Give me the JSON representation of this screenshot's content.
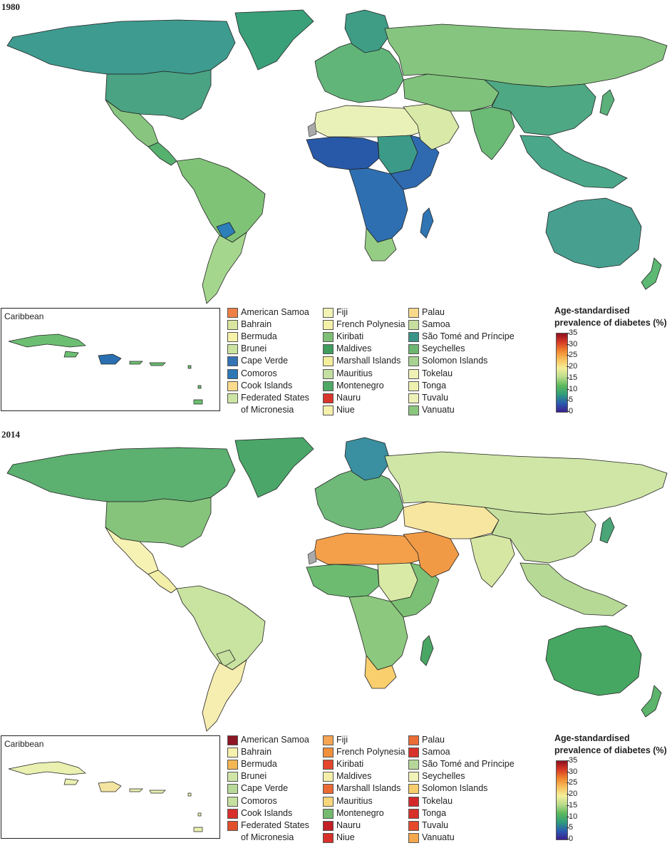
{
  "colors": {
    "ocean": "#ffffff",
    "border": "#222222",
    "no_data": "#a9a9a9",
    "scale_stops": [
      "#3b1f8e",
      "#2a5db0",
      "#2f9d7a",
      "#5cb85c",
      "#b9dc8c",
      "#f3ef9a",
      "#f8c15c",
      "#f0862e",
      "#d83a25",
      "#8e1020"
    ]
  },
  "panels": [
    {
      "year": "1980",
      "caribbean_title": "Caribbean",
      "scale": {
        "title_line1": "Age-standardised",
        "title_line2": "prevalence of diabetes (%)",
        "ticks": [
          "35",
          "30",
          "25",
          "20",
          "15",
          "10",
          "5",
          "0"
        ]
      },
      "regions": {
        "north_america": "#3e9b8f",
        "greenland": "#3aa07a",
        "usa": "#4aa383",
        "mexico": "#88c680",
        "central_america": "#56b06e",
        "south_america": "#7fc377",
        "southern_cone": "#a5d68e",
        "bolivia": "#2c7fb8",
        "europe": "#62b579",
        "scandinavia": "#3f9d86",
        "russia": "#86c57f",
        "north_africa": "#eaf1b8",
        "west_africa": "#2859a8",
        "east_africa": "#2f6ab1",
        "sudan": "#3b9a88",
        "southern_africa": "#2e6fb2",
        "south_africa": "#96cd85",
        "madagascar": "#2f75b4",
        "middle_east": "#d8e9a8",
        "central_asia": "#7fc27b",
        "india": "#6bba76",
        "china": "#4ea883",
        "se_asia": "#4aa78a",
        "australia": "#47a08f",
        "new_zealand": "#5cb872",
        "japan": "#5cb07a",
        "caribbean_islands": "#6cbf72",
        "hispaniola": "#2b6fb0"
      },
      "legend": [
        {
          "name": "American Samoa",
          "color": "#ee7f45"
        },
        {
          "name": "Bahrain",
          "color": "#d9e6a0"
        },
        {
          "name": "Bermuda",
          "color": "#f7f2a8"
        },
        {
          "name": "Brunei",
          "color": "#cbe3a0"
        },
        {
          "name": "Cape Verde",
          "color": "#3473b4"
        },
        {
          "name": "Comoros",
          "color": "#2f78b6"
        },
        {
          "name": "Cook Islands",
          "color": "#f8dc8c"
        },
        {
          "name": "Federated States",
          "name2": "of Micronesia",
          "color": "#cde5a4"
        },
        {
          "name": "Fiji",
          "color": "#f2f3b5"
        },
        {
          "name": "French Polynesia",
          "color": "#f5f0a8"
        },
        {
          "name": "Kiribati",
          "color": "#7fbe76"
        },
        {
          "name": "Maldives",
          "color": "#3f9c5c"
        },
        {
          "name": "Marshall Islands",
          "color": "#f4ed9c"
        },
        {
          "name": "Mauritius",
          "color": "#c3dfa1"
        },
        {
          "name": "Montenegro",
          "color": "#4fa865"
        },
        {
          "name": "Nauru",
          "color": "#d8352b"
        },
        {
          "name": "Niue",
          "color": "#f5f0ac"
        },
        {
          "name": "Palau",
          "color": "#f8d98a"
        },
        {
          "name": "Samoa",
          "color": "#c6dea0"
        },
        {
          "name": "São Tomé and Príncipe",
          "color": "#3a9488"
        },
        {
          "name": "Seychelles",
          "color": "#6db66f"
        },
        {
          "name": "Solomon Islands",
          "color": "#a7d292"
        },
        {
          "name": "Tokelau",
          "color": "#eff1b5"
        },
        {
          "name": "Tonga",
          "color": "#eef0b0"
        },
        {
          "name": "Tuvalu",
          "color": "#eff2b8"
        },
        {
          "name": "Vanuatu",
          "color": "#8bc67e"
        }
      ]
    },
    {
      "year": "2014",
      "caribbean_title": "Caribbean",
      "scale": {
        "title_line1": "Age-standardised",
        "title_line2": "prevalence of diabetes (%)",
        "ticks": [
          "35",
          "30",
          "25",
          "20",
          "15",
          "10",
          "5",
          "0"
        ]
      },
      "regions": {
        "north_america": "#5cb070",
        "greenland": "#4aa769",
        "usa": "#86c47c",
        "mexico": "#f6f2b4",
        "central_america": "#f3eea8",
        "south_america": "#c9e3a1",
        "southern_cone": "#f6edb0",
        "bolivia": "#c6e09f",
        "europe": "#6fb979",
        "scandinavia": "#3a8fa0",
        "russia": "#cfe6a6",
        "north_africa": "#f4a04a",
        "west_africa": "#6cbb71",
        "east_africa": "#7cc075",
        "sudan": "#d8eaa6",
        "southern_africa": "#8cc87e",
        "south_africa": "#f9cf6e",
        "madagascar": "#4aa665",
        "middle_east": "#f19a46",
        "central_asia": "#f7e6a0",
        "india": "#d6e7a4",
        "china": "#c5e09e",
        "se_asia": "#b6d996",
        "australia": "#46a762",
        "new_zealand": "#5cb46c",
        "japan": "#4aa577",
        "caribbean_islands": "#eaf0b0",
        "hispaniola": "#f3e4a0"
      },
      "legend": [
        {
          "name": "American Samoa",
          "color": "#8e1624"
        },
        {
          "name": "Bahrain",
          "color": "#f6f1ad"
        },
        {
          "name": "Bermuda",
          "color": "#f4b653"
        },
        {
          "name": "Brunei",
          "color": "#cfe5a8"
        },
        {
          "name": "Cape Verde",
          "color": "#b9d998"
        },
        {
          "name": "Comoros",
          "color": "#c6e0a0"
        },
        {
          "name": "Cook Islands",
          "color": "#d8302a"
        },
        {
          "name": "Federated States",
          "name2": "of Micronesia",
          "color": "#e0502c"
        },
        {
          "name": "Fiji",
          "color": "#f5a553"
        },
        {
          "name": "French Polynesia",
          "color": "#f08f3c"
        },
        {
          "name": "Kiribati",
          "color": "#e3462c"
        },
        {
          "name": "Maldives",
          "color": "#f4eeaa"
        },
        {
          "name": "Marshall Islands",
          "color": "#ea6a33"
        },
        {
          "name": "Mauritius",
          "color": "#f8d67c"
        },
        {
          "name": "Montenegro",
          "color": "#74bb6f"
        },
        {
          "name": "Nauru",
          "color": "#c21f26"
        },
        {
          "name": "Niue",
          "color": "#d8302a"
        },
        {
          "name": "Palau",
          "color": "#ea6d36"
        },
        {
          "name": "Samoa",
          "color": "#d73129"
        },
        {
          "name": "São Tomé and Príncipe",
          "color": "#b6d79a"
        },
        {
          "name": "Seychelles",
          "color": "#f1f2b7"
        },
        {
          "name": "Solomon Islands",
          "color": "#f8cd6c"
        },
        {
          "name": "Tokelau",
          "color": "#d4292a"
        },
        {
          "name": "Tonga",
          "color": "#d92f29"
        },
        {
          "name": "Tuvalu",
          "color": "#e54a2b"
        },
        {
          "name": "Vanuatu",
          "color": "#f4a84e"
        }
      ]
    }
  ]
}
